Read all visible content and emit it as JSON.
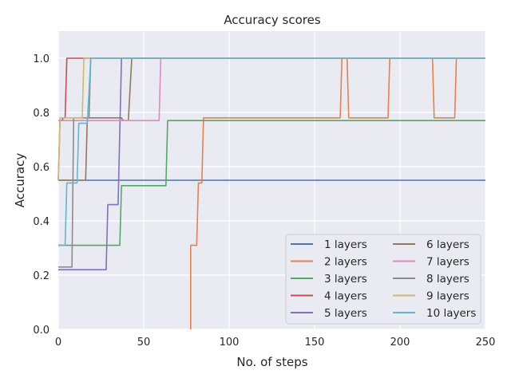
{
  "chart_data": {
    "type": "line",
    "title": "Accuracy scores",
    "xlabel": "No. of steps",
    "ylabel": "Accuracy",
    "xlim": [
      0,
      250
    ],
    "ylim": [
      0.0,
      1.1
    ],
    "xticks": [
      0,
      50,
      100,
      150,
      200,
      250
    ],
    "yticks": [
      0.0,
      0.2,
      0.4,
      0.6,
      0.8,
      1.0
    ],
    "xtick_labels": [
      "0",
      "50",
      "100",
      "150",
      "200",
      "250"
    ],
    "ytick_labels": [
      "0.0",
      "0.2",
      "0.4",
      "0.6",
      "0.8",
      "1.0"
    ],
    "grid": true,
    "legend_position": "lower-right",
    "legend_columns": 2,
    "background": "#eaeaf2",
    "series": [
      {
        "name": "1 layers",
        "color": "#4c72b0",
        "points": [
          [
            0,
            0.55
          ],
          [
            250,
            0.55
          ]
        ]
      },
      {
        "name": "2 layers",
        "color": "#dd8452",
        "points": [
          [
            77.5,
            0.0
          ],
          [
            77.5,
            0.31
          ],
          [
            81,
            0.31
          ],
          [
            82,
            0.54
          ],
          [
            84,
            0.54
          ],
          [
            85,
            0.78
          ],
          [
            165,
            0.78
          ],
          [
            166,
            1.0
          ],
          [
            169,
            1.0
          ],
          [
            170,
            0.78
          ],
          [
            193,
            0.78
          ],
          [
            194,
            1.0
          ],
          [
            219,
            1.0
          ],
          [
            220,
            0.78
          ],
          [
            232,
            0.78
          ],
          [
            233,
            1.0
          ],
          [
            250,
            1.0
          ]
        ]
      },
      {
        "name": "3 layers",
        "color": "#55a868",
        "points": [
          [
            0,
            0.31
          ],
          [
            36,
            0.31
          ],
          [
            37,
            0.53
          ],
          [
            63,
            0.53
          ],
          [
            64,
            0.77
          ],
          [
            250,
            0.77
          ]
        ]
      },
      {
        "name": "4 layers",
        "color": "#c44e52",
        "points": [
          [
            0,
            0.55
          ],
          [
            1,
            0.77
          ],
          [
            2,
            0.77
          ],
          [
            3,
            0.78
          ],
          [
            4,
            0.78
          ],
          [
            5,
            1.0
          ],
          [
            250,
            1.0
          ]
        ]
      },
      {
        "name": "5 layers",
        "color": "#8172b3",
        "points": [
          [
            0,
            0.22
          ],
          [
            28,
            0.22
          ],
          [
            29,
            0.46
          ],
          [
            35,
            0.46
          ],
          [
            37,
            1.0
          ],
          [
            250,
            1.0
          ]
        ]
      },
      {
        "name": "6 layers",
        "color": "#937860",
        "points": [
          [
            0,
            0.55
          ],
          [
            16,
            0.55
          ],
          [
            17,
            0.78
          ],
          [
            37,
            0.78
          ],
          [
            38,
            0.77
          ],
          [
            41,
            0.77
          ],
          [
            43,
            1.0
          ],
          [
            250,
            1.0
          ]
        ]
      },
      {
        "name": "7 layers",
        "color": "#da8bc3",
        "points": [
          [
            0,
            0.77
          ],
          [
            59,
            0.77
          ],
          [
            60,
            1.0
          ],
          [
            250,
            1.0
          ]
        ]
      },
      {
        "name": "8 layers",
        "color": "#8c8c8c",
        "points": [
          [
            0,
            0.23
          ],
          [
            8,
            0.23
          ],
          [
            9,
            0.78
          ],
          [
            18,
            0.78
          ],
          [
            19,
            1.0
          ],
          [
            250,
            1.0
          ]
        ]
      },
      {
        "name": "9 layers",
        "color": "#ccb974",
        "points": [
          [
            0,
            0.55
          ],
          [
            1,
            0.78
          ],
          [
            14,
            0.78
          ],
          [
            15,
            1.0
          ],
          [
            250,
            1.0
          ]
        ]
      },
      {
        "name": "10 layers",
        "color": "#64b5cd",
        "points": [
          [
            0,
            0.31
          ],
          [
            4,
            0.31
          ],
          [
            5,
            0.54
          ],
          [
            11,
            0.54
          ],
          [
            12,
            0.76
          ],
          [
            17,
            0.76
          ],
          [
            19,
            1.0
          ],
          [
            250,
            1.0
          ]
        ]
      }
    ]
  }
}
